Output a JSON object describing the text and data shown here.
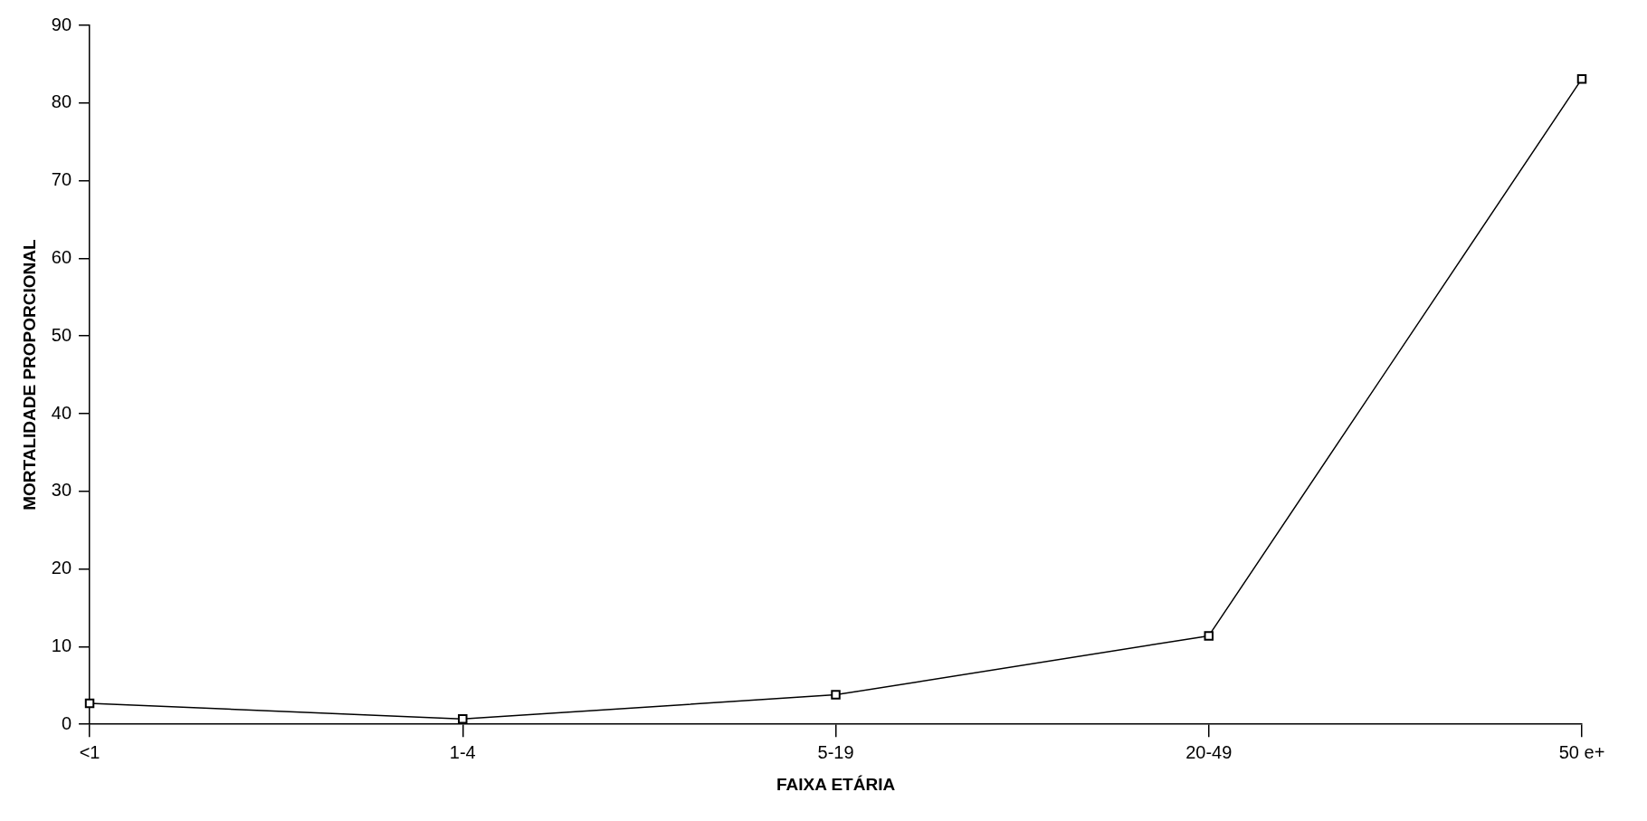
{
  "chart_data": {
    "type": "line",
    "xlabel": "FAIXA ETÁRIA",
    "ylabel": "MORTALIDADE PROPORCIONAL",
    "categories": [
      "<1",
      "1-4",
      "5-19",
      "20-49",
      "50 e+"
    ],
    "series": [
      {
        "color": "#000000",
        "values": [
          2.7,
          0.7,
          3.8,
          11.4,
          83.1
        ]
      }
    ],
    "ylim": [
      0,
      90
    ],
    "yticks": [
      0,
      10,
      20,
      30,
      40,
      50,
      60,
      70,
      80,
      90
    ],
    "grid": false,
    "legend": false,
    "marker": "square",
    "line_style": "solid"
  }
}
